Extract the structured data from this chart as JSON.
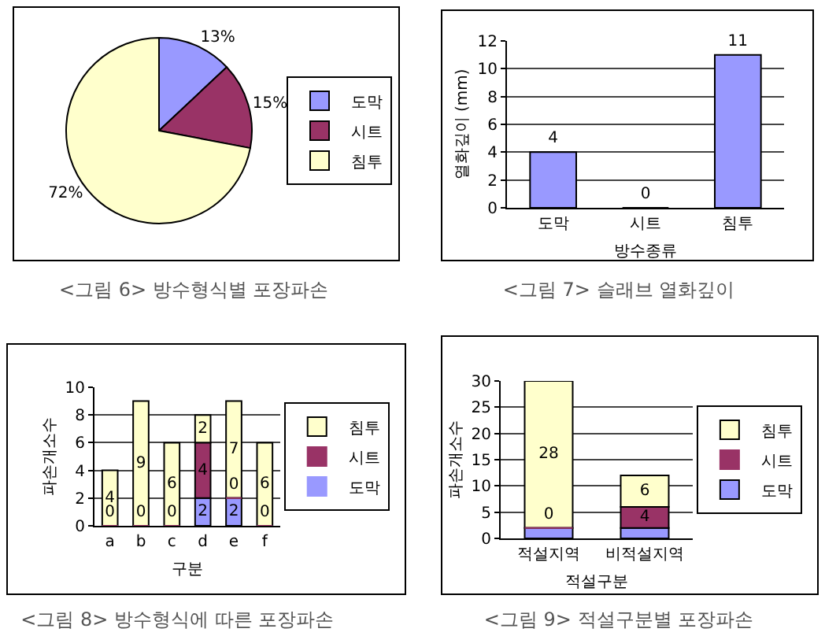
{
  "chart_data": [
    {
      "type": "pie",
      "title": "<그림 6> 방수형식별 포장파손",
      "categories": [
        "도막",
        "시트",
        "침투"
      ],
      "values": [
        13,
        15,
        72
      ],
      "colors": [
        "#9999ff",
        "#993366",
        "#ffffcc"
      ],
      "value_labels": [
        "13%",
        "15%",
        "72%"
      ],
      "legend": "right"
    },
    {
      "type": "bar",
      "title": "<그림 7> 슬래브 열화깊이",
      "xlabel": "방수종류",
      "ylabel": "열화깊이 (mm)",
      "categories": [
        "도막",
        "시트",
        "침투"
      ],
      "values": [
        4,
        0,
        11
      ],
      "color": "#9999ff",
      "ylim": [
        0,
        12
      ],
      "yticks": [
        0,
        2,
        4,
        6,
        8,
        10,
        12
      ],
      "grid": "y",
      "data_labels": true
    },
    {
      "type": "bar",
      "title": "<그림 8> 방수형식에 따른 포장파손",
      "xlabel": "구분",
      "ylabel": "파손개소수",
      "categories": [
        "a",
        "b",
        "c",
        "d",
        "e",
        "f"
      ],
      "stacked": true,
      "series": [
        {
          "name": "도막",
          "color": "#9999ff",
          "values": [
            0,
            0,
            0,
            2,
            2,
            0
          ],
          "value_labels": [
            "0",
            "0",
            "0",
            "2",
            "2",
            "0"
          ]
        },
        {
          "name": "시트",
          "color": "#993366",
          "values": [
            0,
            0,
            0,
            4,
            0,
            0
          ],
          "value_labels": [
            null,
            null,
            null,
            "4",
            "0",
            null
          ]
        },
        {
          "name": "침투",
          "color": "#ffffcc",
          "values": [
            4,
            9,
            6,
            2,
            7,
            6
          ],
          "value_labels": [
            "4",
            "9",
            "6",
            "2",
            "7",
            "6"
          ]
        }
      ],
      "ylim": [
        0,
        10
      ],
      "yticks": [
        0,
        2,
        4,
        6,
        8,
        10
      ],
      "grid": "y",
      "legend": "right"
    },
    {
      "type": "bar",
      "title": "<그림 9> 적설구분별 포장파손",
      "xlabel": "적설구분",
      "ylabel": "파손개소수",
      "categories": [
        "적설지역",
        "비적설지역"
      ],
      "stacked": true,
      "series": [
        {
          "name": "도막",
          "color": "#9999ff",
          "values": [
            2,
            2
          ]
        },
        {
          "name": "시트",
          "color": "#993366",
          "values": [
            0,
            4
          ],
          "value_labels": [
            "0",
            "4"
          ]
        },
        {
          "name": "침투",
          "color": "#ffffcc",
          "values": [
            28,
            6
          ],
          "value_labels": [
            "28",
            "6"
          ]
        }
      ],
      "ylim": [
        0,
        30
      ],
      "yticks": [
        0,
        5,
        10,
        15,
        20,
        25,
        30
      ],
      "grid": "y",
      "legend": "right"
    }
  ]
}
